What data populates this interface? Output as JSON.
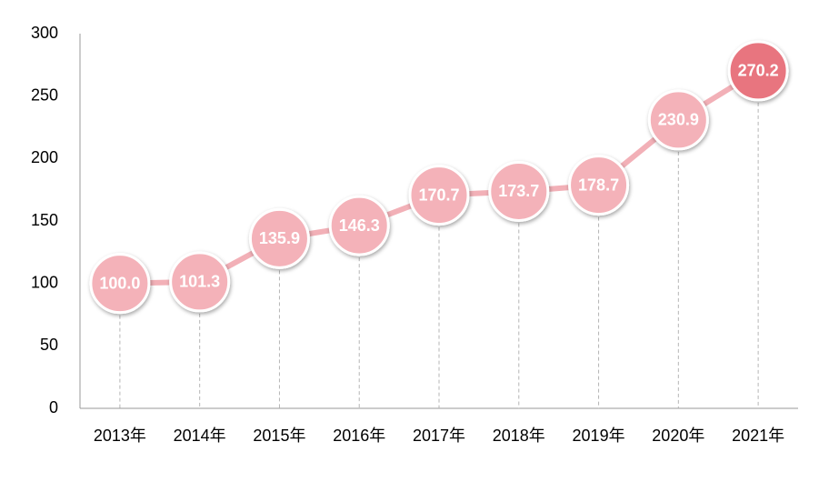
{
  "chart_data": {
    "type": "line",
    "categories": [
      "2013年",
      "2014年",
      "2015年",
      "2016年",
      "2017年",
      "2018年",
      "2019年",
      "2020年",
      "2021年"
    ],
    "values": [
      100,
      101.3,
      135.9,
      146.3,
      170.7,
      173.7,
      178.7,
      230.9,
      270.2
    ],
    "value_labels": [
      "100.0",
      "101.3",
      "135.9",
      "146.3",
      "170.7",
      "173.7",
      "178.7",
      "230.9",
      "270.2"
    ],
    "color": "#f2b0b7",
    "marker_colors": [
      "#f4b2b9",
      "#f4b2b9",
      "#f4b2b9",
      "#f4b2b9",
      "#f4b2b9",
      "#f4b2b9",
      "#f4b2b9",
      "#f4b2b9",
      "#e8747f"
    ],
    "ylim": [
      0,
      300
    ],
    "yticks": [
      0,
      50,
      100,
      150,
      200,
      250,
      300
    ],
    "grid": false
  }
}
